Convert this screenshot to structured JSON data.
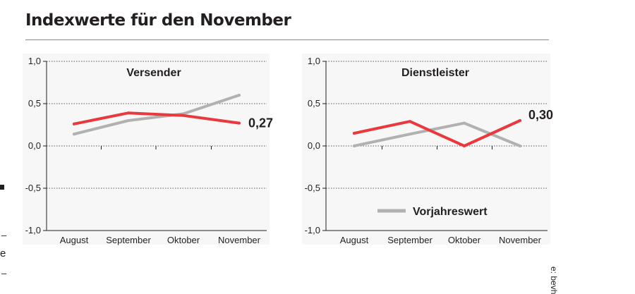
{
  "header": {
    "title": "Indexwerte für den November"
  },
  "colors": {
    "current": "#e8393f",
    "previous": "#b1b1b1",
    "axis": "#231f20",
    "panel_bg": "#f7f7f7"
  },
  "chart_data": [
    {
      "type": "line",
      "title": "Versender",
      "categories": [
        "August",
        "September",
        "Oktober",
        "November"
      ],
      "yticks": [
        "1,0",
        "0,5",
        "0,0",
        "-0,5",
        "-1,0"
      ],
      "ylim": [
        -1.0,
        1.0
      ],
      "grid": "dotted horizontal",
      "series": [
        {
          "values": [
            0.26,
            0.39,
            0.36,
            0.27
          ],
          "color": "#e8393f"
        },
        {
          "name": "Vorjahreswert",
          "values": [
            0.14,
            0.3,
            0.38,
            0.6
          ],
          "color": "#b1b1b1"
        }
      ],
      "annotation": "0,27"
    },
    {
      "type": "line",
      "title": "Dienstleister",
      "categories": [
        "August",
        "September",
        "Oktober",
        "November"
      ],
      "yticks": [
        "1,0",
        "0,5",
        "0,0",
        "-0,5",
        "-1,0"
      ],
      "ylim": [
        -1.0,
        1.0
      ],
      "grid": "dotted horizontal",
      "series": [
        {
          "values": [
            0.15,
            0.29,
            0.0,
            0.3
          ],
          "color": "#e8393f"
        },
        {
          "name": "Vorjahreswert",
          "values": [
            0.0,
            0.14,
            0.27,
            0.0
          ],
          "color": "#b1b1b1"
        }
      ],
      "annotation": "0,30",
      "legend": {
        "label": "Vorjahreswert",
        "position": "bottom-center"
      }
    }
  ],
  "margin": {
    "dash1": "–",
    "letter": "e",
    "dash2": "–"
  },
  "source_credit": "e: bevh"
}
